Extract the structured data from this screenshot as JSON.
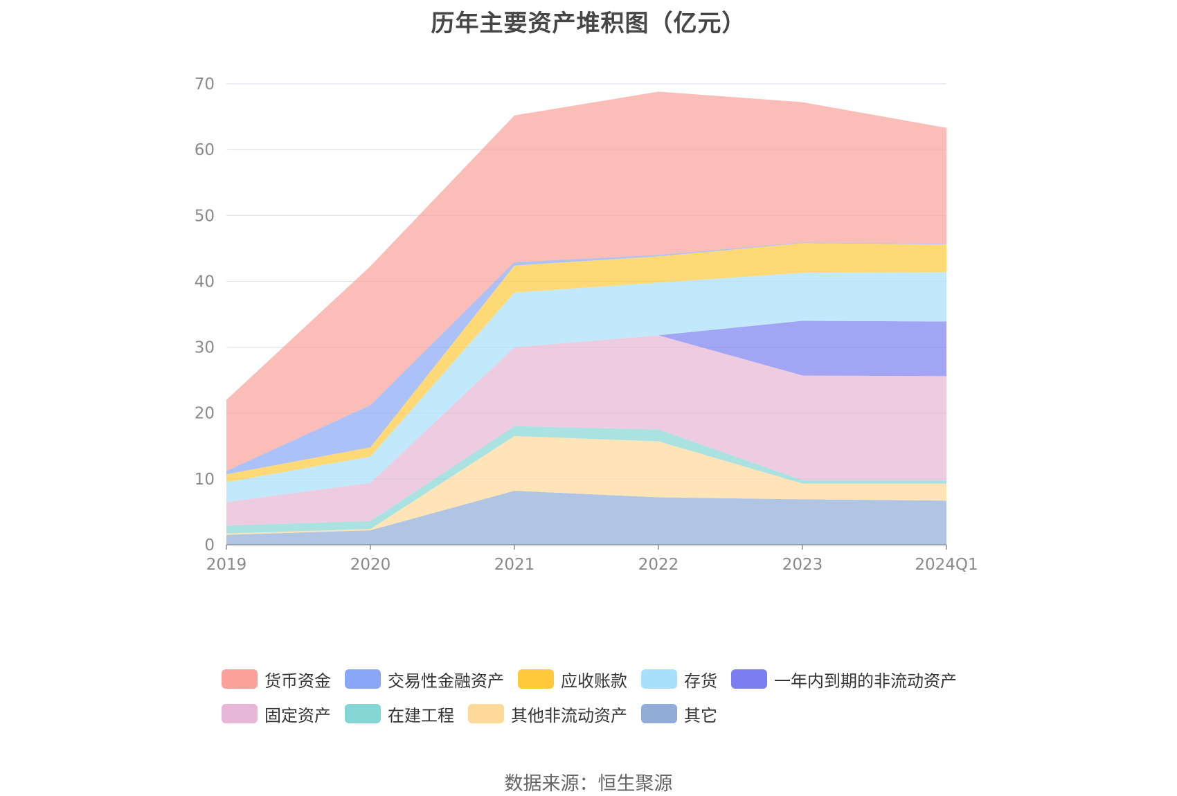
{
  "chart_data": {
    "type": "area",
    "stacked": true,
    "title": "历年主要资产堆积图（亿元）",
    "source": "数据来源：恒生聚源",
    "xlabel": "",
    "ylabel": "",
    "categories": [
      "2019",
      "2020",
      "2021",
      "2022",
      "2023",
      "2024Q1"
    ],
    "ylim": [
      0,
      70
    ],
    "yticks": [
      0,
      10,
      20,
      30,
      40,
      50,
      60,
      70
    ],
    "grid": true,
    "legend_position": "bottom",
    "series": [
      {
        "name": "其它",
        "color": "#8fadd8",
        "values": [
          1.5,
          2.2,
          8.2,
          7.2,
          6.9,
          6.7
        ]
      },
      {
        "name": "其他非流动资产",
        "color": "#ffd99a",
        "values": [
          0.2,
          0.2,
          8.3,
          8.5,
          2.4,
          2.6
        ]
      },
      {
        "name": "在建工程",
        "color": "#86d6d6",
        "values": [
          1.2,
          1.2,
          1.5,
          1.8,
          0.5,
          0.5
        ]
      },
      {
        "name": "固定资产",
        "color": "#e6b7d6",
        "values": [
          3.6,
          5.8,
          12.0,
          14.3,
          15.9,
          15.8
        ]
      },
      {
        "name": "一年内到期的非流动资产",
        "color": "#7a7ef0",
        "values": [
          0,
          0,
          0,
          0,
          8.3,
          8.3
        ]
      },
      {
        "name": "存货",
        "color": "#a8e0fa",
        "values": [
          3.0,
          4.0,
          8.3,
          8.0,
          7.3,
          7.5
        ]
      },
      {
        "name": "应收账款",
        "color": "#ffc93c",
        "values": [
          1.2,
          1.4,
          4.1,
          4.0,
          4.5,
          4.2
        ]
      },
      {
        "name": "交易性金融资产",
        "color": "#8aa6f6",
        "values": [
          0.5,
          6.4,
          0.5,
          0.2,
          0.1,
          0.1
        ]
      },
      {
        "name": "货币资金",
        "color": "#faa199",
        "values": [
          10.8,
          21.1,
          22.3,
          24.8,
          21.3,
          17.6
        ]
      }
    ]
  },
  "legend": {
    "rows": [
      [
        {
          "name": "货币资金",
          "color": "#faa199"
        },
        {
          "name": "交易性金融资产",
          "color": "#8aa6f6"
        },
        {
          "name": "应收账款",
          "color": "#ffc93c"
        },
        {
          "name": "存货",
          "color": "#a8e0fa"
        },
        {
          "name": "一年内到期的非流动资产",
          "color": "#7a7ef0"
        }
      ],
      [
        {
          "name": "固定资产",
          "color": "#e6b7d6"
        },
        {
          "name": "在建工程",
          "color": "#86d6d6"
        },
        {
          "name": "其他非流动资产",
          "color": "#ffd99a"
        },
        {
          "name": "其它",
          "color": "#8fadd8"
        }
      ]
    ]
  }
}
